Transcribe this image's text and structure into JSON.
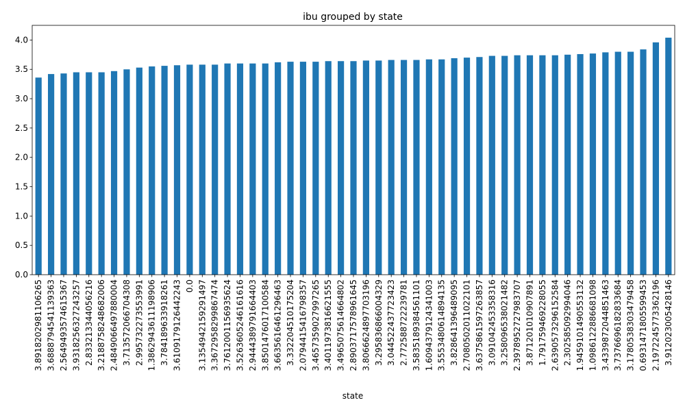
{
  "chart_data": {
    "type": "bar",
    "title": "ibu grouped by state",
    "xlabel": "state",
    "ylabel": "",
    "ylim": [
      0,
      4.25
    ],
    "yticks": [
      "0.0",
      "0.5",
      "1.0",
      "1.5",
      "2.0",
      "2.5",
      "3.0",
      "3.5",
      "4.0"
    ],
    "grid": false,
    "legend": "none",
    "bar_color": "#1f77b4",
    "categories": [
      "3.891820298110626​5",
      "3.688879454113936​3",
      "2.564949357461536​7",
      "3.931825632724325​7",
      "2.833213344056216",
      "3.218875824868200​6",
      "2.484906649788000​4",
      "3.713572066704308",
      "2.995732273553991",
      "1.386294361119890​6",
      "3.784189633918261",
      "3.610917912644224​3",
      "0.0",
      "3.135494215929149​7",
      "3.367295829986747​4",
      "3.761200115693562​4",
      "3.526360524616161​6",
      "2.944438979166440​3",
      "3.850147601710058​4",
      "3.663561646129646​3",
      "3.332204510175204",
      "2.079441541679835​7",
      "3.465735902799726​5",
      "3.401197381662155​5",
      "3.496507561466480​2",
      "2.890371757896164​5",
      "3.806662489770319​6",
      "3.295836866004329",
      "3.044522437723423",
      "2.772588722239781",
      "3.583518938456110​1",
      "1.609437912434100​3",
      "3.555348061489413​5",
      "3.828641396489095",
      "2.708050201102210​1",
      "3.637586159726385​7",
      "3.091042453358316",
      "3.258096538021482",
      "2.397895272798370​7",
      "3.871201010907891",
      "1.791759469228055",
      "2.639057329615258​4",
      "2.302585092994046",
      "1.945910149055313​2",
      "1.098612288668109​8",
      "3.433987204485146​3",
      "3.737669618283368​4",
      "3.178053830347945​8",
      "0.693147180559945​3",
      "2.197224577336219​6",
      "3.912023005428146"
    ],
    "values": [
      3.36,
      3.42,
      3.43,
      3.45,
      3.45,
      3.45,
      3.47,
      3.5,
      3.53,
      3.55,
      3.56,
      3.57,
      3.58,
      3.58,
      3.58,
      3.6,
      3.6,
      3.6,
      3.6,
      3.62,
      3.63,
      3.63,
      3.63,
      3.64,
      3.64,
      3.64,
      3.65,
      3.65,
      3.66,
      3.66,
      3.66,
      3.67,
      3.67,
      3.69,
      3.7,
      3.71,
      3.73,
      3.73,
      3.74,
      3.74,
      3.74,
      3.74,
      3.75,
      3.76,
      3.77,
      3.79,
      3.8,
      3.8,
      3.84,
      3.96,
      4.04
    ]
  }
}
